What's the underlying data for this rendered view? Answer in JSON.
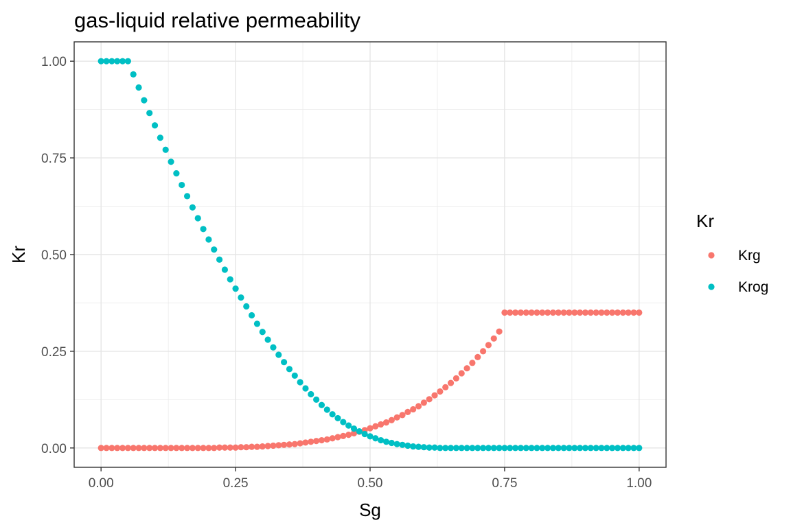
{
  "chart_data": {
    "type": "scatter",
    "title": "gas-liquid relative permeability",
    "xlabel": "Sg",
    "ylabel": "Kr",
    "xlim": [
      -0.05,
      1.05
    ],
    "ylim": [
      -0.05,
      1.05
    ],
    "x_ticks": [
      0,
      0.25,
      0.5,
      0.75,
      1
    ],
    "x_tick_labels": [
      "0.00",
      "0.25",
      "0.50",
      "0.75",
      "1.00"
    ],
    "y_ticks": [
      0,
      0.25,
      0.5,
      0.75,
      1
    ],
    "y_tick_labels": [
      "0.00",
      "0.25",
      "0.50",
      "0.75",
      "1.00"
    ],
    "grid": true,
    "legend": {
      "title": "Kr",
      "position": "right",
      "entries": [
        "Krg",
        "Krog"
      ]
    },
    "series": [
      {
        "name": "Krg",
        "color": "#F8766D",
        "x": [
          0.0,
          0.01,
          0.02,
          0.03,
          0.04,
          0.05,
          0.06,
          0.07,
          0.08,
          0.09,
          0.1,
          0.11,
          0.12,
          0.13,
          0.14,
          0.15,
          0.16,
          0.17,
          0.18,
          0.19,
          0.2,
          0.21,
          0.22,
          0.23,
          0.24,
          0.25,
          0.26,
          0.27,
          0.28,
          0.29,
          0.3,
          0.31,
          0.32,
          0.33,
          0.34,
          0.35,
          0.36,
          0.37,
          0.38,
          0.39,
          0.4,
          0.41,
          0.42,
          0.43,
          0.44,
          0.45,
          0.46,
          0.47,
          0.48,
          0.49,
          0.5,
          0.51,
          0.52,
          0.53,
          0.54,
          0.55,
          0.56,
          0.57,
          0.58,
          0.59,
          0.6,
          0.61,
          0.62,
          0.63,
          0.64,
          0.65,
          0.66,
          0.67,
          0.68,
          0.69,
          0.7,
          0.71,
          0.72,
          0.73,
          0.74,
          0.75,
          0.76,
          0.77,
          0.78,
          0.79,
          0.8,
          0.81,
          0.82,
          0.83,
          0.84,
          0.85,
          0.86,
          0.87,
          0.88,
          0.89,
          0.9,
          0.91,
          0.92,
          0.93,
          0.94,
          0.95,
          0.96,
          0.97,
          0.98,
          0.99,
          1.0
        ],
        "y": [
          0.0,
          0.0,
          0.0,
          0.0,
          0.0,
          0.0,
          0.0,
          0.0,
          0.0,
          0.0,
          0.0,
          0.0,
          0.0,
          0.0,
          0.0,
          0.0,
          0.0,
          0.0,
          0.0,
          0.0,
          0.0,
          0.0,
          0.001,
          0.001,
          0.001,
          0.001,
          0.002,
          0.002,
          0.003,
          0.003,
          0.004,
          0.005,
          0.006,
          0.007,
          0.008,
          0.009,
          0.01,
          0.012,
          0.014,
          0.016,
          0.018,
          0.02,
          0.022,
          0.025,
          0.028,
          0.031,
          0.034,
          0.038,
          0.042,
          0.046,
          0.051,
          0.056,
          0.061,
          0.066,
          0.072,
          0.079,
          0.085,
          0.093,
          0.1,
          0.108,
          0.117,
          0.126,
          0.136,
          0.146,
          0.157,
          0.168,
          0.18,
          0.193,
          0.206,
          0.22,
          0.235,
          0.25,
          0.266,
          0.283,
          0.301,
          0.35,
          0.35,
          0.35,
          0.35,
          0.35,
          0.35,
          0.35,
          0.35,
          0.35,
          0.35,
          0.35,
          0.35,
          0.35,
          0.35,
          0.35,
          0.35,
          0.35,
          0.35,
          0.35,
          0.35,
          0.35,
          0.35,
          0.35,
          0.35,
          0.35,
          0.35
        ]
      },
      {
        "name": "Krog",
        "color": "#00BFC4",
        "x": [
          0.0,
          0.01,
          0.02,
          0.03,
          0.04,
          0.05,
          0.06,
          0.07,
          0.08,
          0.09,
          0.1,
          0.11,
          0.12,
          0.13,
          0.14,
          0.15,
          0.16,
          0.17,
          0.18,
          0.19,
          0.2,
          0.21,
          0.22,
          0.23,
          0.24,
          0.25,
          0.26,
          0.27,
          0.28,
          0.29,
          0.3,
          0.31,
          0.32,
          0.33,
          0.34,
          0.35,
          0.36,
          0.37,
          0.38,
          0.39,
          0.4,
          0.41,
          0.42,
          0.43,
          0.44,
          0.45,
          0.46,
          0.47,
          0.48,
          0.49,
          0.5,
          0.51,
          0.52,
          0.53,
          0.54,
          0.55,
          0.56,
          0.57,
          0.58,
          0.59,
          0.6,
          0.61,
          0.62,
          0.63,
          0.64,
          0.65,
          0.66,
          0.67,
          0.68,
          0.69,
          0.7,
          0.71,
          0.72,
          0.73,
          0.74,
          0.75,
          0.76,
          0.77,
          0.78,
          0.79,
          0.8,
          0.81,
          0.82,
          0.83,
          0.84,
          0.85,
          0.86,
          0.87,
          0.88,
          0.89,
          0.9,
          0.91,
          0.92,
          0.93,
          0.94,
          0.95,
          0.96,
          0.97,
          0.98,
          0.99,
          1.0
        ],
        "y": [
          1.0,
          1.0,
          1.0,
          1.0,
          1.0,
          1.0,
          0.966,
          0.932,
          0.899,
          0.866,
          0.834,
          0.802,
          0.771,
          0.74,
          0.71,
          0.68,
          0.651,
          0.622,
          0.594,
          0.566,
          0.539,
          0.513,
          0.487,
          0.461,
          0.436,
          0.412,
          0.389,
          0.366,
          0.343,
          0.321,
          0.3,
          0.28,
          0.26,
          0.241,
          0.222,
          0.204,
          0.187,
          0.17,
          0.154,
          0.139,
          0.125,
          0.111,
          0.099,
          0.087,
          0.077,
          0.067,
          0.058,
          0.05,
          0.043,
          0.036,
          0.03,
          0.025,
          0.02,
          0.016,
          0.013,
          0.01,
          0.008,
          0.006,
          0.004,
          0.003,
          0.002,
          0.001,
          0.001,
          0.0,
          0.0,
          0.0,
          0.0,
          0.0,
          0.0,
          0.0,
          0.0,
          0.0,
          0.0,
          0.0,
          0.0,
          0.0,
          0.0,
          0.0,
          0.0,
          0.0,
          0.0,
          0.0,
          0.0,
          0.0,
          0.0,
          0.0,
          0.0,
          0.0,
          0.0,
          0.0,
          0.0,
          0.0,
          0.0,
          0.0,
          0.0,
          0.0,
          0.0,
          0.0,
          0.0,
          0.0,
          0.0
        ]
      }
    ]
  }
}
